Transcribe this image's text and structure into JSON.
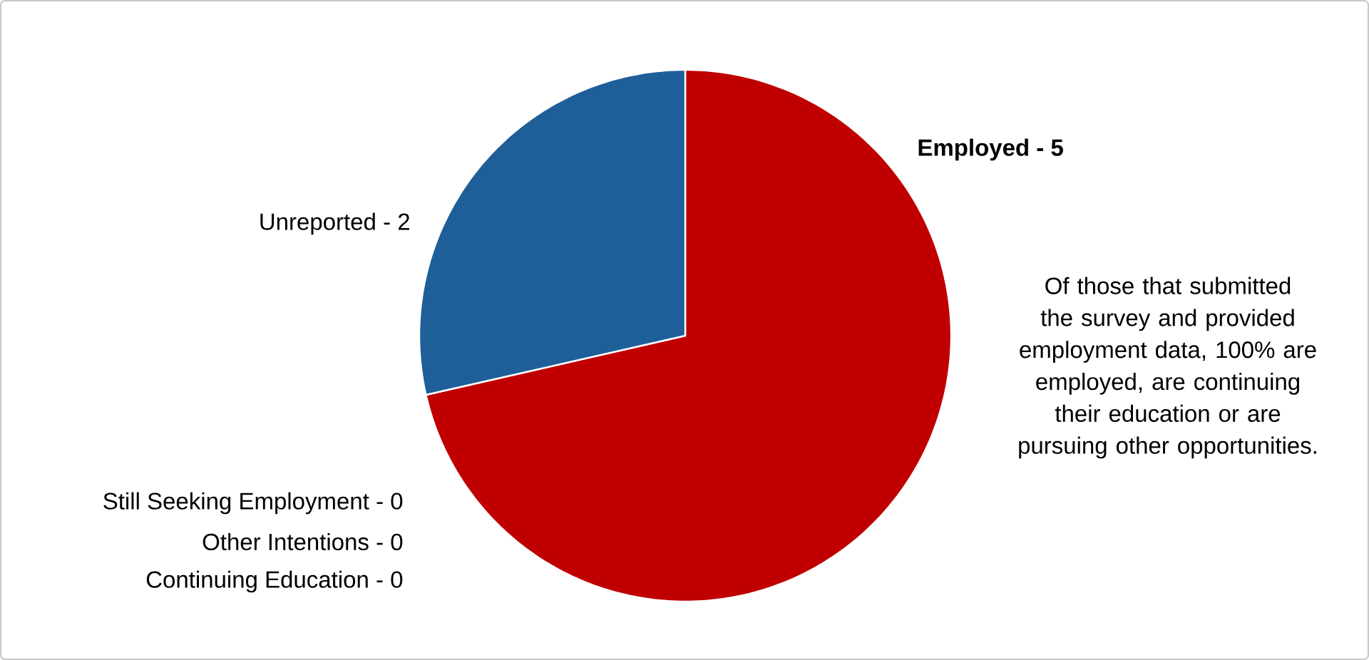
{
  "chart_data": {
    "type": "pie",
    "categories": [
      "Employed -",
      "Unreported -",
      "Still Seeking Employment - 0",
      "Other Intentions - 0",
      "Continuing Education - 0"
    ],
    "values": [
      5,
      2,
      0,
      0,
      0
    ],
    "data_labels": true,
    "colors": [
      "#c00000",
      "#1f5f99",
      "#7f7f7f",
      "#a5a5a5",
      "#4472c4"
    ],
    "annotations": [
      "Of those that submitted the survey and provided employment data, 100% are employed, are continuing their education or are pursuing other opportunities."
    ]
  }
}
